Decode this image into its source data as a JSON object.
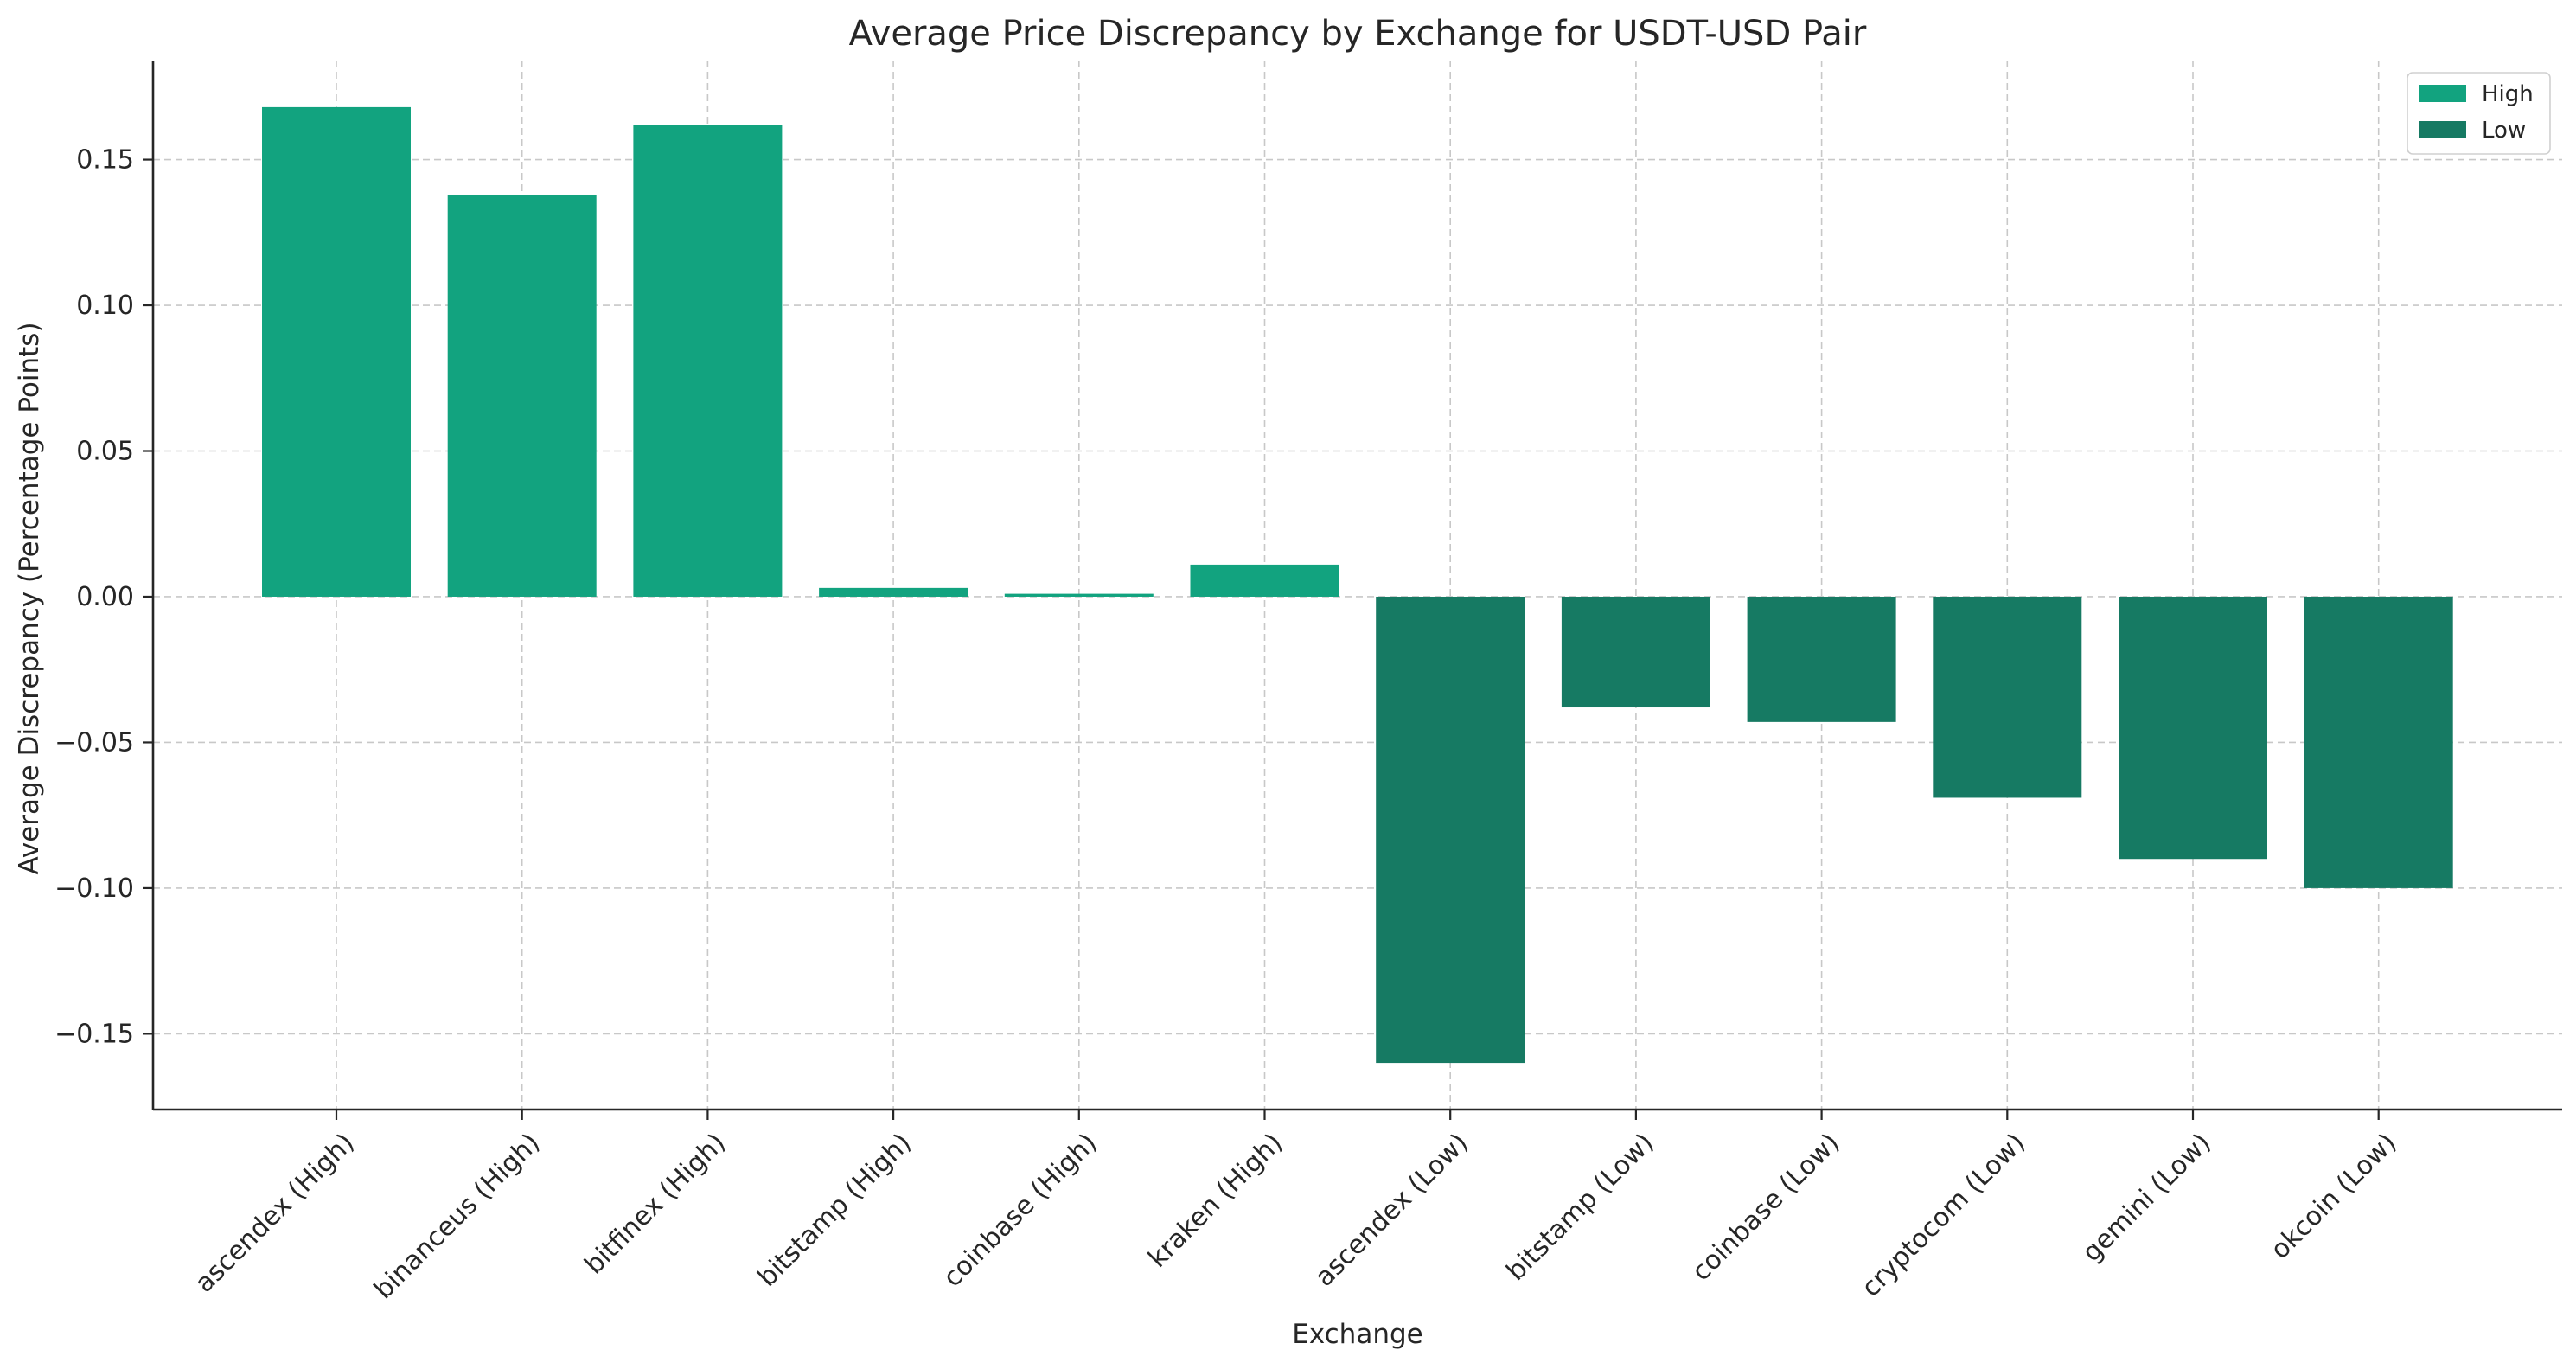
{
  "chart_data": {
    "type": "bar",
    "title": "Average Price Discrepancy by Exchange for USDT-USD Pair",
    "xlabel": "Exchange",
    "ylabel": "Average Discrepancy (Percentage Points)",
    "ylim": [
      -0.176,
      0.184
    ],
    "yticks": [
      0.15,
      0.1,
      0.05,
      0.0,
      -0.05,
      -0.1,
      -0.15
    ],
    "ytick_labels": [
      "0.15",
      "0.10",
      "0.05",
      "0.00",
      "−0.05",
      "−0.10",
      "−0.15"
    ],
    "grid": true,
    "legend_position": "top-right",
    "categories": [
      "ascendex (High)",
      "binanceus (High)",
      "bitfinex (High)",
      "bitstamp (High)",
      "coinbase (High)",
      "kraken (High)",
      "ascendex (Low)",
      "bitstamp (Low)",
      "coinbase (Low)",
      "cryptocom (Low)",
      "gemini (Low)",
      "okcoin (Low)"
    ],
    "values": [
      0.168,
      0.138,
      0.162,
      0.003,
      0.001,
      0.011,
      -0.16,
      -0.038,
      -0.043,
      -0.069,
      -0.09,
      -0.1
    ],
    "groups": [
      "High",
      "High",
      "High",
      "High",
      "High",
      "High",
      "Low",
      "Low",
      "Low",
      "Low",
      "Low",
      "Low"
    ],
    "legend": [
      {
        "name": "High",
        "color": "#12a37f"
      },
      {
        "name": "Low",
        "color": "#167a63"
      }
    ]
  }
}
